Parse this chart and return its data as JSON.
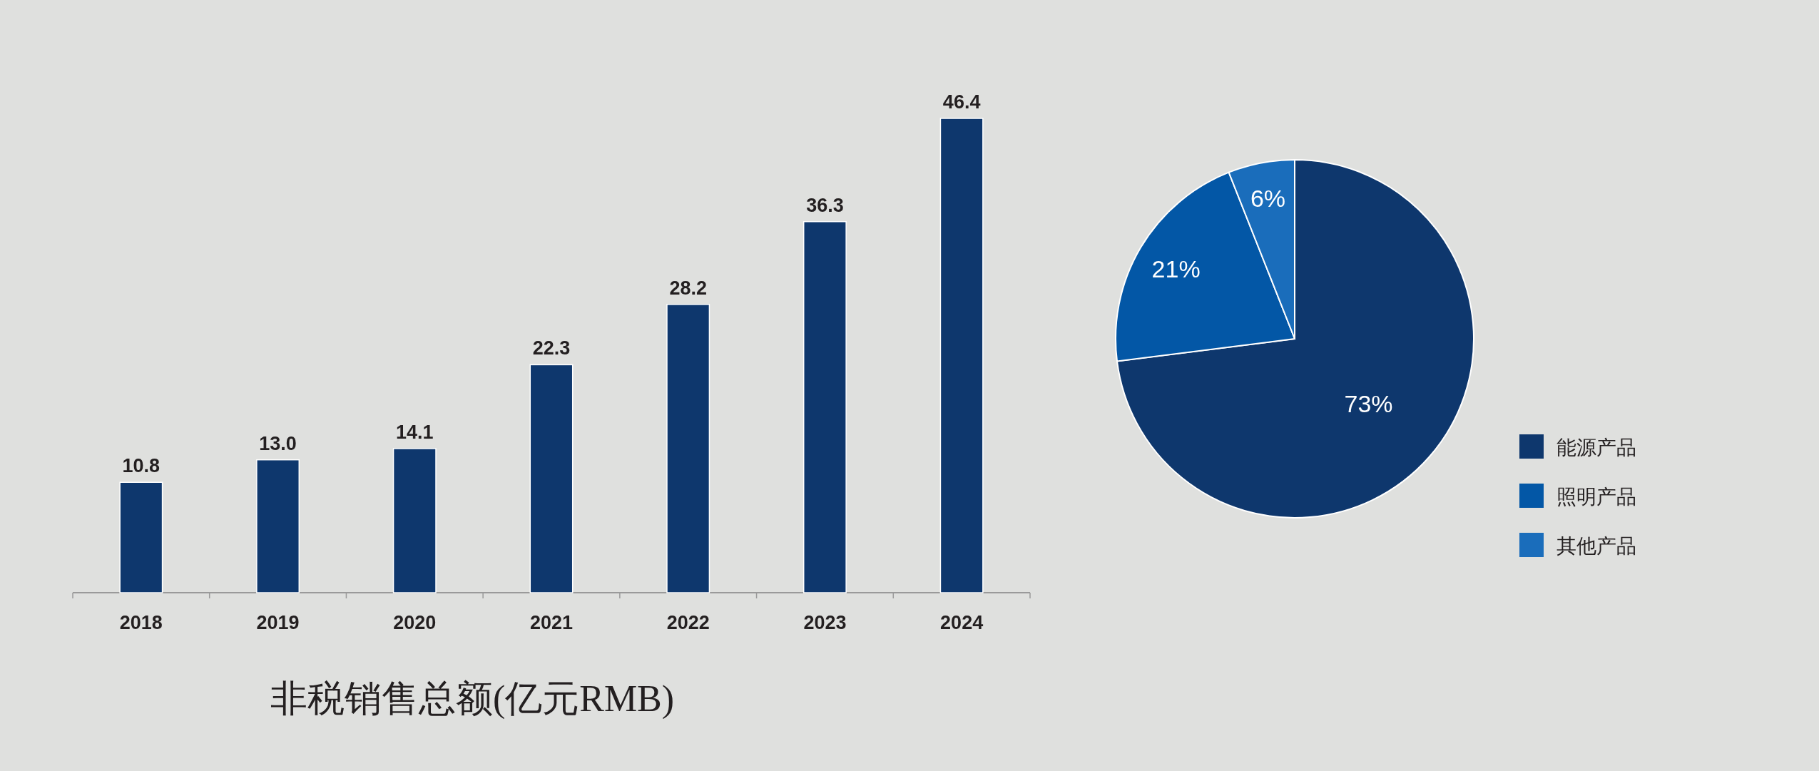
{
  "chart_data": [
    {
      "type": "bar",
      "title": "非税销售总额(亿元RMB)",
      "categories": [
        "2018",
        "2019",
        "2020",
        "2021",
        "2022",
        "2023",
        "2024"
      ],
      "values": [
        10.8,
        13.0,
        14.1,
        22.3,
        28.2,
        36.3,
        46.4
      ],
      "value_labels": [
        "10.8",
        "13.0",
        "14.1",
        "22.3",
        "28.2",
        "36.3",
        "46.4"
      ],
      "color": "#0e376d",
      "ylim": [
        0,
        46.4
      ],
      "tick_labels": "x"
    },
    {
      "type": "pie",
      "categories": [
        "能源产品",
        "照明产品",
        "其他产品"
      ],
      "values": [
        73,
        21,
        6
      ],
      "colors": [
        "#0e376d",
        "#0357a6",
        "#1a6dbb"
      ],
      "value_labels": [
        "73%",
        "21%",
        "6%"
      ],
      "legend": "right"
    }
  ]
}
